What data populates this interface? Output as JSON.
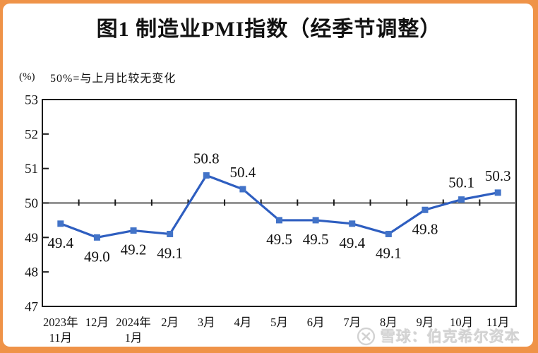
{
  "page": {
    "title": "图1  制造业PMI指数（经季节调整）",
    "unit_label": "(%)",
    "subtitle": "50%=与上月比较无变化",
    "watermark": {
      "icon": "xueqiu-logo",
      "text": "雪球：伯克希尔资本"
    }
  },
  "chart_data": {
    "type": "line",
    "title": "图1  制造业PMI指数（经季节调整）",
    "note": "50%=与上月比较无变化",
    "unit": "(%)",
    "categories": [
      "2023年\n11月",
      "12月",
      "2024年\n1月",
      "2月",
      "3月",
      "4月",
      "5月",
      "6月",
      "7月",
      "8月",
      "9月",
      "10月",
      "11月"
    ],
    "values": [
      49.4,
      49.0,
      49.2,
      49.1,
      50.8,
      50.4,
      49.5,
      49.5,
      49.4,
      49.1,
      49.8,
      50.1,
      50.3
    ],
    "ylim": [
      47,
      53
    ],
    "yticks": [
      47,
      48,
      49,
      50,
      51,
      52,
      53
    ],
    "reference_line": 50,
    "grid": false,
    "legend": "none",
    "marker": "square",
    "data_labels": true,
    "colors": {
      "line": "#2E5EC0",
      "marker": "#4273C8",
      "reference_line": "#595959",
      "axis": "#1a1a1a",
      "frame_border": "#EF9348"
    }
  }
}
